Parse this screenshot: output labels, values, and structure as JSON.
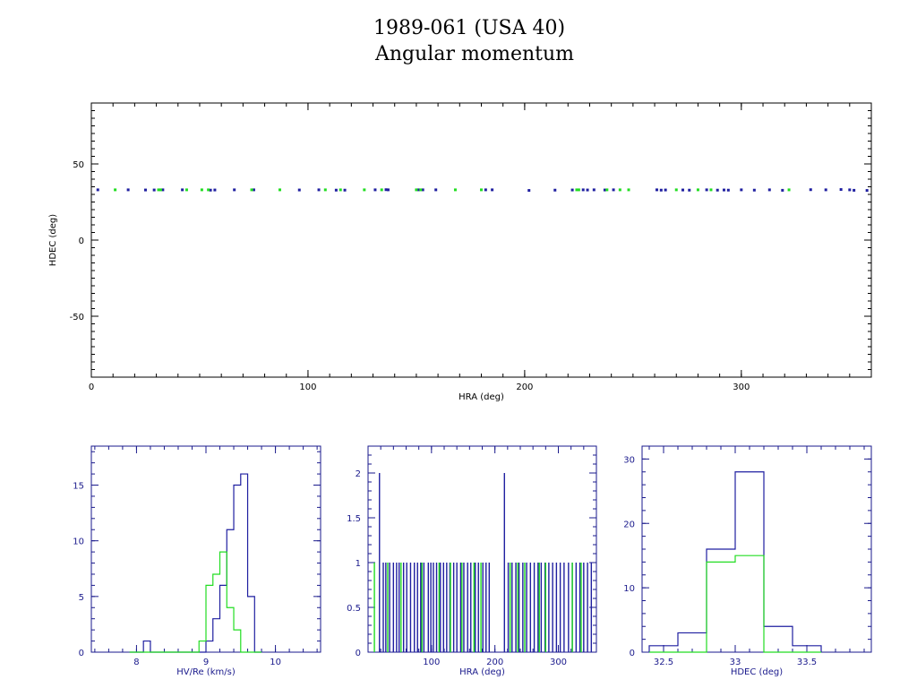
{
  "title_line1": "1989-061 (USA 40)",
  "title_line2": "Angular momentum",
  "colors": {
    "series_blue": "#1f1fa0",
    "series_green": "#22dd22",
    "axis_main": "#000000",
    "axis_small": "#1a1a8c"
  },
  "chart_data": [
    {
      "type": "scatter",
      "xlabel": "HRA (deg)",
      "ylabel": "HDEC (deg)",
      "xlim": [
        0,
        360
      ],
      "ylim": [
        -90,
        90
      ],
      "xticks": [
        0,
        100,
        200,
        300
      ],
      "yticks": [
        -50,
        0,
        50
      ],
      "series": [
        {
          "color": "#1f1fa0",
          "x": [
            3,
            17,
            25,
            29,
            33,
            42,
            55,
            57,
            66,
            75,
            96,
            105,
            113,
            117,
            131,
            136,
            137,
            151,
            153,
            159,
            182,
            185,
            202,
            214,
            222,
            227,
            229,
            232,
            237,
            241,
            261,
            263,
            265,
            273,
            276,
            284,
            289,
            292,
            294,
            300,
            306,
            313,
            319,
            332,
            339,
            346,
            350,
            352,
            358
          ],
          "y": [
            33,
            33,
            32.9,
            32.9,
            33,
            33,
            32.8,
            32.9,
            33,
            33,
            32.9,
            33,
            32.8,
            32.8,
            33,
            33.1,
            33,
            33,
            33,
            33,
            33,
            33,
            32.6,
            32.8,
            32.9,
            33,
            32.9,
            33,
            32.9,
            33,
            33,
            32.8,
            32.9,
            32.9,
            32.8,
            33,
            32.8,
            32.9,
            32.8,
            33,
            32.8,
            33,
            32.7,
            33.1,
            33,
            33.2,
            33,
            32.7,
            32.6
          ]
        },
        {
          "color": "#22dd22",
          "x": [
            11,
            31,
            32,
            44,
            51,
            54,
            74,
            87,
            108,
            115,
            126,
            134,
            150,
            152,
            168,
            180,
            224,
            225,
            238,
            244,
            248,
            270,
            280,
            286,
            322
          ],
          "y": [
            33,
            33,
            33,
            33,
            33,
            33,
            33,
            33,
            33,
            33,
            33,
            33,
            33,
            33,
            33,
            33,
            33,
            33,
            33,
            33,
            33,
            33,
            33,
            33,
            33
          ]
        }
      ]
    },
    {
      "type": "histogram",
      "xlabel": "HV/Re (km/s)",
      "xlim": [
        7.35,
        10.65
      ],
      "ylim": [
        0,
        18.5
      ],
      "xticks": [
        8,
        9,
        10
      ],
      "yticks": [
        0,
        5,
        10,
        15
      ],
      "bin_edges": [
        7.9,
        8.0,
        8.1,
        8.2,
        8.3,
        8.4,
        8.5,
        8.6,
        8.7,
        8.8,
        8.9,
        9.0,
        9.1,
        9.2,
        9.3,
        9.4,
        9.5,
        9.6,
        9.7,
        9.8
      ],
      "series": [
        {
          "color": "#1f1fa0",
          "counts": [
            0,
            0,
            1,
            0,
            0,
            0,
            0,
            0,
            0,
            0,
            0,
            1,
            3,
            6,
            11,
            15,
            16,
            5,
            0
          ]
        },
        {
          "color": "#22dd22",
          "counts": [
            0,
            0,
            0,
            0,
            0,
            0,
            0,
            0,
            0,
            0,
            1,
            6,
            7,
            9,
            4,
            2,
            0,
            0,
            0
          ]
        }
      ]
    },
    {
      "type": "spike",
      "xlabel": "HRA (deg)",
      "xlim": [
        0,
        360
      ],
      "ylim": [
        0,
        2.3
      ],
      "xticks": [
        100,
        200,
        300
      ],
      "yticks": [
        0,
        0.5,
        1,
        1.5,
        2
      ],
      "series": [
        {
          "color": "#1f1fa0",
          "x": [
            18,
            24,
            28,
            34,
            40,
            45,
            49,
            56,
            61,
            67,
            73,
            78,
            83,
            88,
            95,
            99,
            103,
            108,
            114,
            119,
            124,
            129,
            135,
            140,
            146,
            151,
            157,
            162,
            169,
            174,
            181,
            186,
            191,
            215,
            221,
            227,
            233,
            238,
            244,
            250,
            256,
            262,
            268,
            273,
            279,
            285,
            291,
            297,
            303,
            309,
            316,
            322,
            328,
            334,
            340,
            346,
            352
          ],
          "y": [
            2,
            1,
            1,
            1,
            1,
            1,
            1,
            1,
            1,
            1,
            1,
            1,
            1,
            1,
            1,
            1,
            1,
            1,
            1,
            1,
            1,
            1,
            1,
            1,
            1,
            1,
            1,
            1,
            1,
            1,
            1,
            1,
            1,
            2,
            1,
            1,
            1,
            1,
            1,
            1,
            1,
            1,
            1,
            1,
            1,
            1,
            1,
            1,
            1,
            1,
            1,
            1,
            1,
            1,
            1,
            1,
            1
          ]
        },
        {
          "color": "#22dd22",
          "x": [
            10,
            31,
            52,
            85,
            112,
            130,
            148,
            167,
            178,
            224,
            236,
            247,
            270,
            280,
            322,
            336
          ],
          "y": [
            1,
            1,
            1,
            1,
            1,
            1,
            1,
            1,
            1,
            1,
            1,
            1,
            1,
            1,
            1,
            1
          ]
        }
      ]
    },
    {
      "type": "histogram",
      "xlabel": "HDEC (deg)",
      "xlim": [
        32.35,
        33.95
      ],
      "ylim": [
        0,
        32
      ],
      "xticks": [
        32.5,
        33,
        33.5
      ],
      "tick_labels": [
        "32.5",
        "33",
        "33.5"
      ],
      "yticks": [
        0,
        10,
        20,
        30
      ],
      "bin_edges": [
        32.4,
        32.6,
        32.8,
        33.0,
        33.2,
        33.4,
        33.6
      ],
      "series": [
        {
          "color": "#1f1fa0",
          "counts": [
            1,
            3,
            16,
            28,
            4,
            1
          ]
        },
        {
          "color": "#22dd22",
          "counts": [
            0,
            0,
            14,
            15,
            0,
            0
          ]
        }
      ]
    }
  ]
}
